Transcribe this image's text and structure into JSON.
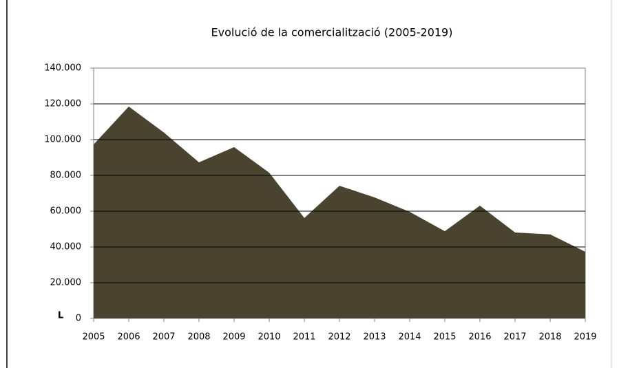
{
  "chart_data": {
    "type": "area",
    "title": "Evolució de la comercialització (2005-2019)",
    "y_label": "L",
    "x": [
      2005,
      2006,
      2007,
      2008,
      2009,
      2010,
      2011,
      2012,
      2013,
      2014,
      2015,
      2016,
      2017,
      2018,
      2019
    ],
    "values": [
      97300,
      118500,
      104000,
      87300,
      95800,
      81500,
      56200,
      74200,
      67700,
      59600,
      48800,
      63100,
      48100,
      47000,
      37300
    ],
    "color": "#4a4330",
    "xlim": [
      2005,
      2019
    ],
    "xticks": [
      2005,
      2006,
      2007,
      2008,
      2009,
      2010,
      2011,
      2012,
      2013,
      2014,
      2015,
      2016,
      2017,
      2018,
      2019
    ],
    "ylim": [
      0,
      140000
    ],
    "yticks": [
      0,
      {
        "value": 20000,
        "label": "20.000"
      },
      {
        "value": 40000,
        "label": "40.000"
      },
      {
        "value": 60000,
        "label": "60.000"
      },
      {
        "value": 80000,
        "label": "80.000"
      },
      {
        "value": 100000,
        "label": "100.000"
      },
      {
        "value": 120000,
        "label": "120.000"
      },
      {
        "value": 140000,
        "label": "140.000"
      }
    ],
    "grid": true
  }
}
